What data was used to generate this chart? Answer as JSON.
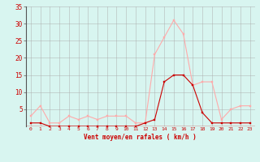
{
  "hours": [
    0,
    1,
    2,
    3,
    4,
    5,
    6,
    7,
    8,
    9,
    10,
    11,
    12,
    13,
    14,
    15,
    16,
    17,
    18,
    19,
    20,
    21,
    22,
    23
  ],
  "wind_avg": [
    1,
    1,
    0,
    0,
    0,
    0,
    0,
    0,
    0,
    0,
    0,
    0,
    1,
    2,
    13,
    15,
    15,
    12,
    4,
    1,
    1,
    1,
    1,
    1
  ],
  "wind_gust": [
    3,
    6,
    1,
    1,
    3,
    2,
    3,
    2,
    3,
    3,
    3,
    1,
    1,
    21,
    26,
    31,
    27,
    12,
    13,
    13,
    2,
    5,
    6,
    6
  ],
  "color_avg": "#cc0000",
  "color_gust": "#ffaaaa",
  "background": "#d8f5f0",
  "grid_color": "#aaaaaa",
  "xlabel": "Vent moyen/en rafales ( km/h )",
  "ylim": [
    0,
    35
  ],
  "yticks": [
    5,
    10,
    15,
    20,
    25,
    30,
    35
  ]
}
